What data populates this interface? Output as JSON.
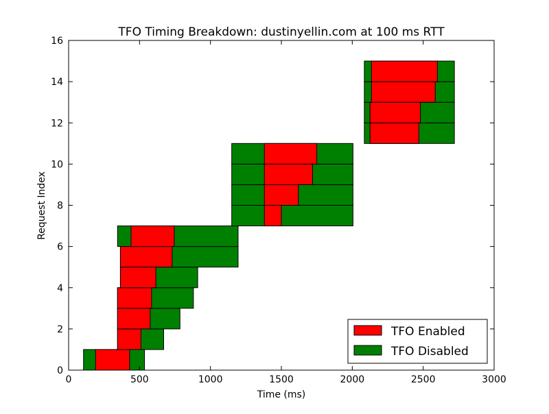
{
  "chart_data": {
    "type": "bar",
    "orientation": "horizontal",
    "title": "TFO Timing Breakdown: dustinyellin.com at 100 ms RTT",
    "xlabel": "Time (ms)",
    "ylabel": "Request Index",
    "xlim": [
      0,
      3000
    ],
    "ylim": [
      0,
      16
    ],
    "xticks": [
      0,
      500,
      1000,
      1500,
      2000,
      2500,
      3000
    ],
    "yticks": [
      0,
      2,
      4,
      6,
      8,
      10,
      12,
      14,
      16
    ],
    "grid": false,
    "legend_position": "lower-right",
    "series": [
      {
        "name": "TFO Enabled",
        "color": "#ff0000",
        "bars": [
          {
            "index": 0,
            "start": 190,
            "end": 430
          },
          {
            "index": 1,
            "start": 345,
            "end": 510
          },
          {
            "index": 2,
            "start": 345,
            "end": 575
          },
          {
            "index": 3,
            "start": 345,
            "end": 585
          },
          {
            "index": 4,
            "start": 365,
            "end": 615
          },
          {
            "index": 5,
            "start": 365,
            "end": 730
          },
          {
            "index": 6,
            "start": 440,
            "end": 745
          },
          {
            "index": 7,
            "start": 1380,
            "end": 1500
          },
          {
            "index": 8,
            "start": 1380,
            "end": 1620
          },
          {
            "index": 9,
            "start": 1380,
            "end": 1720
          },
          {
            "index": 10,
            "start": 1380,
            "end": 1750
          },
          {
            "index": 11,
            "start": 2125,
            "end": 2470
          },
          {
            "index": 12,
            "start": 2125,
            "end": 2480
          },
          {
            "index": 13,
            "start": 2135,
            "end": 2585
          },
          {
            "index": 14,
            "start": 2135,
            "end": 2600
          }
        ]
      },
      {
        "name": "TFO Disabled",
        "color": "#008000",
        "bars": [
          {
            "index": 0,
            "start": 105,
            "end": 535
          },
          {
            "index": 1,
            "start": 345,
            "end": 670
          },
          {
            "index": 2,
            "start": 345,
            "end": 785
          },
          {
            "index": 3,
            "start": 345,
            "end": 880
          },
          {
            "index": 4,
            "start": 365,
            "end": 910
          },
          {
            "index": 5,
            "start": 365,
            "end": 1195
          },
          {
            "index": 6,
            "start": 345,
            "end": 1195
          },
          {
            "index": 7,
            "start": 1150,
            "end": 2005
          },
          {
            "index": 8,
            "start": 1150,
            "end": 2005
          },
          {
            "index": 9,
            "start": 1150,
            "end": 2005
          },
          {
            "index": 10,
            "start": 1150,
            "end": 2005
          },
          {
            "index": 11,
            "start": 2085,
            "end": 2720
          },
          {
            "index": 12,
            "start": 2085,
            "end": 2720
          },
          {
            "index": 13,
            "start": 2085,
            "end": 2720
          },
          {
            "index": 14,
            "start": 2085,
            "end": 2720
          }
        ]
      }
    ]
  }
}
